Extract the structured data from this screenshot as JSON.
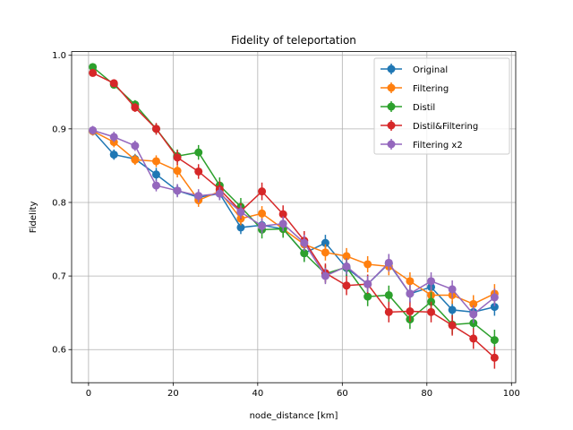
{
  "chart_data": {
    "type": "line",
    "title": "Fidelity of teleportation",
    "xlabel": "node_distance [km]",
    "ylabel": "Fidelity",
    "xlim": [
      -4,
      101
    ],
    "ylim": [
      0.555,
      1.005
    ],
    "xticks": [
      0,
      20,
      40,
      60,
      80,
      100
    ],
    "yticks": [
      0.6,
      0.7,
      0.8,
      0.9,
      1.0
    ],
    "xtick_labels": [
      "0",
      "20",
      "40",
      "60",
      "80",
      "100"
    ],
    "ytick_labels": [
      "0.6",
      "0.7",
      "0.8",
      "0.9",
      "1.0"
    ],
    "grid": true,
    "legend_position": "top-right",
    "x": [
      1,
      6,
      11,
      16,
      21,
      26,
      31,
      36,
      41,
      46,
      51,
      56,
      61,
      66,
      71,
      76,
      81,
      86,
      91,
      96
    ],
    "series": [
      {
        "name": "Original",
        "color": "#1f77b4",
        "values": [
          0.897,
          0.865,
          0.859,
          0.838,
          0.816,
          0.807,
          0.812,
          0.766,
          0.769,
          0.764,
          0.731,
          0.745,
          0.711,
          0.689,
          0.717,
          0.676,
          0.685,
          0.654,
          0.651,
          0.658
        ],
        "errors": [
          0.006,
          0.007,
          0.007,
          0.009,
          0.008,
          0.009,
          0.009,
          0.009,
          0.01,
          0.01,
          0.011,
          0.011,
          0.011,
          0.012,
          0.012,
          0.012,
          0.012,
          0.012,
          0.012,
          0.012
        ]
      },
      {
        "name": "Filtering",
        "color": "#ff7f0e",
        "values": [
          0.897,
          0.882,
          0.858,
          0.856,
          0.843,
          0.803,
          0.815,
          0.778,
          0.785,
          0.764,
          0.743,
          0.732,
          0.727,
          0.716,
          0.713,
          0.693,
          0.674,
          0.674,
          0.662,
          0.676
        ],
        "errors": [
          0.006,
          0.007,
          0.007,
          0.008,
          0.009,
          0.009,
          0.009,
          0.009,
          0.01,
          0.01,
          0.011,
          0.011,
          0.011,
          0.011,
          0.012,
          0.012,
          0.012,
          0.012,
          0.012,
          0.013
        ]
      },
      {
        "name": "Distil",
        "color": "#2ca02c",
        "values": [
          0.984,
          0.96,
          0.933,
          0.9,
          0.863,
          0.868,
          0.823,
          0.794,
          0.763,
          0.764,
          0.731,
          0.703,
          0.712,
          0.672,
          0.674,
          0.641,
          0.665,
          0.634,
          0.636,
          0.613
        ],
        "errors": [
          0.004,
          0.005,
          0.006,
          0.007,
          0.009,
          0.01,
          0.011,
          0.012,
          0.012,
          0.012,
          0.012,
          0.012,
          0.012,
          0.013,
          0.013,
          0.013,
          0.013,
          0.013,
          0.014,
          0.014
        ]
      },
      {
        "name": "Distil&Filtering",
        "color": "#d62728",
        "values": [
          0.976,
          0.962,
          0.929,
          0.9,
          0.861,
          0.842,
          0.818,
          0.788,
          0.815,
          0.784,
          0.748,
          0.704,
          0.687,
          0.689,
          0.651,
          0.652,
          0.651,
          0.633,
          0.615,
          0.589
        ],
        "errors": [
          0.004,
          0.005,
          0.006,
          0.008,
          0.01,
          0.01,
          0.011,
          0.011,
          0.012,
          0.012,
          0.013,
          0.013,
          0.013,
          0.013,
          0.014,
          0.014,
          0.014,
          0.014,
          0.014,
          0.015
        ]
      },
      {
        "name": "Filtering x2",
        "color": "#9467bd",
        "values": [
          0.898,
          0.889,
          0.877,
          0.823,
          0.816,
          0.809,
          0.812,
          0.787,
          0.768,
          0.771,
          0.745,
          0.7,
          0.713,
          0.689,
          0.718,
          0.676,
          0.693,
          0.682,
          0.648,
          0.671
        ],
        "errors": [
          0.006,
          0.007,
          0.007,
          0.008,
          0.009,
          0.009,
          0.009,
          0.009,
          0.01,
          0.01,
          0.011,
          0.011,
          0.011,
          0.011,
          0.012,
          0.012,
          0.012,
          0.012,
          0.012,
          0.012
        ]
      }
    ]
  }
}
